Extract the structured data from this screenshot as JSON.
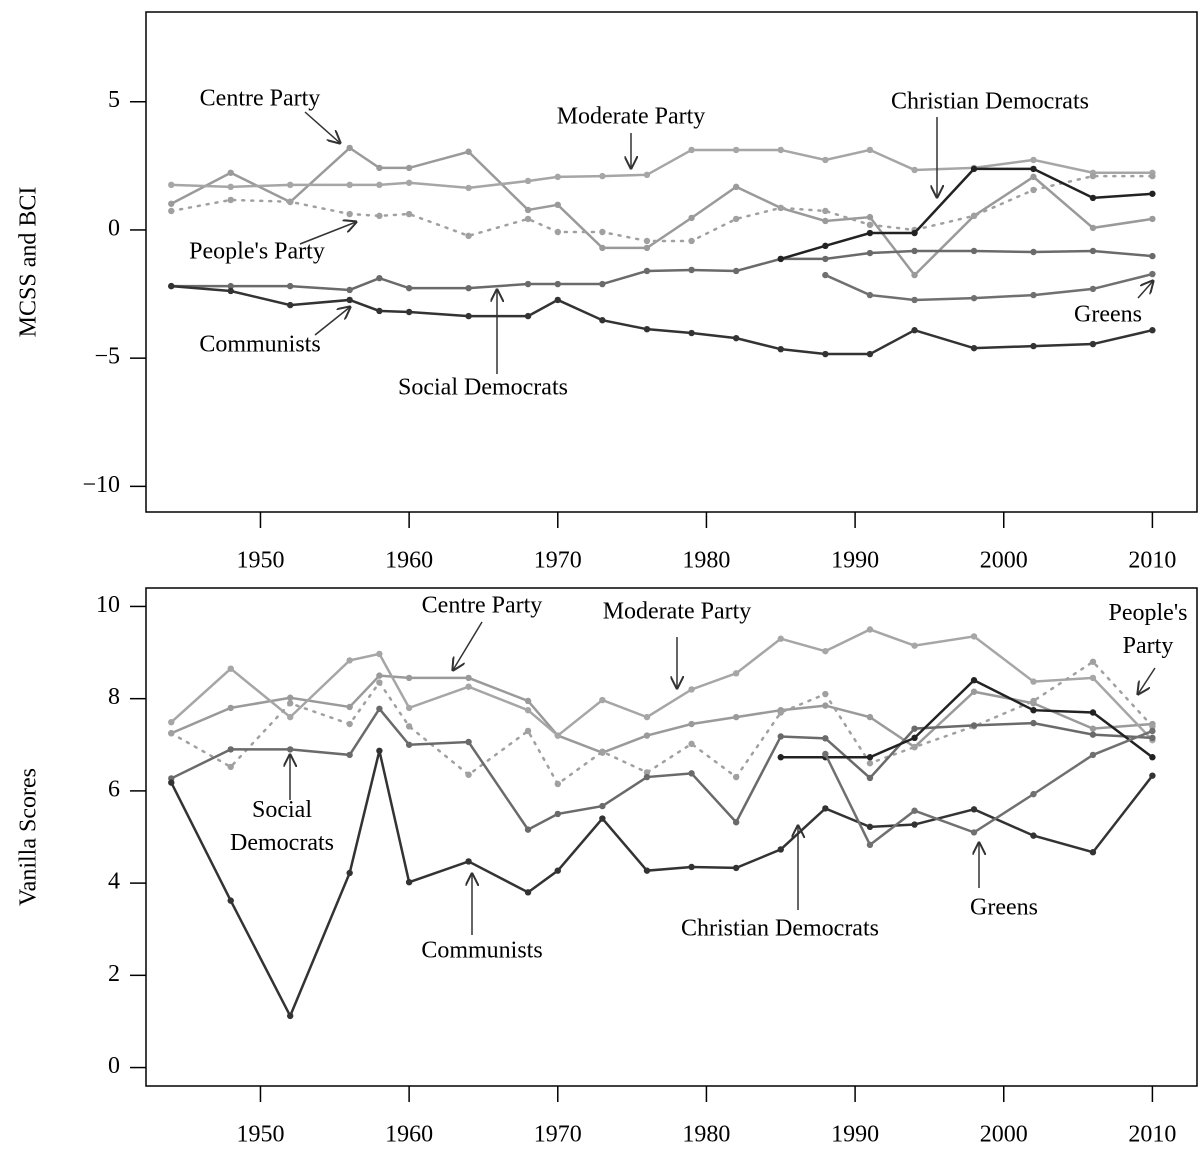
{
  "chart_data": [
    {
      "type": "line",
      "ylabel": "MCSS and BCI",
      "x": [
        1944,
        1948,
        1952,
        1956,
        1958,
        1960,
        1964,
        1968,
        1970,
        1973,
        1976,
        1979,
        1982,
        1985,
        1988,
        1991,
        1994,
        1998,
        2002,
        2006,
        2010
      ],
      "xlim": [
        1942.3,
        2013
      ],
      "xticks": [
        1950,
        1960,
        1970,
        1980,
        1990,
        2000,
        2010
      ],
      "ylim": [
        -11,
        8.5
      ],
      "yticks": [
        {
          "value": -10,
          "label": "−10"
        },
        {
          "value": -5,
          "label": "−5"
        },
        0,
        5
      ],
      "series": [
        {
          "name": "Centre Party",
          "color": "#9a9a9a",
          "style": "solid",
          "values": [
            1.02,
            2.23,
            1.09,
            3.2,
            2.42,
            2.42,
            3.05,
            0.78,
            0.98,
            -0.7,
            -0.7,
            0.47,
            1.68,
            0.86,
            0.35,
            0.5,
            -1.76,
            0.55,
            2.07,
            0.08,
            0.43
          ]
        },
        {
          "name": "Moderate Party",
          "color": "#a6a6a6",
          "style": "solid",
          "values": [
            1.76,
            1.68,
            1.76,
            1.76,
            1.76,
            1.84,
            1.64,
            1.91,
            2.07,
            2.1,
            2.15,
            3.12,
            3.12,
            3.12,
            2.73,
            3.12,
            2.34,
            2.42,
            2.73,
            2.23,
            2.23
          ]
        },
        {
          "name": "People's Party",
          "color": "#a0a0a0",
          "style": "dotted",
          "values": [
            0.74,
            1.17,
            1.1,
            0.62,
            0.55,
            0.62,
            -0.23,
            0.43,
            -0.08,
            -0.08,
            -0.43,
            -0.43,
            0.43,
            0.86,
            0.74,
            0.2,
            0,
            0.55,
            1.56,
            2.1,
            2.1
          ]
        },
        {
          "name": "Social Democrats",
          "color": "#6a6a6a",
          "style": "solid",
          "values": [
            -2.19,
            -2.19,
            -2.19,
            -2.34,
            -1.88,
            -2.27,
            -2.27,
            -2.11,
            -2.11,
            -2.11,
            -1.6,
            -1.56,
            -1.6,
            -1.13,
            -1.13,
            -0.9,
            -0.82,
            -0.82,
            -0.86,
            -0.82,
            -1.02
          ]
        },
        {
          "name": "Communists",
          "color": "#333333",
          "style": "solid",
          "values": [
            -2.19,
            -2.38,
            -2.93,
            -2.73,
            -3.16,
            -3.2,
            -3.36,
            -3.36,
            -2.73,
            -3.52,
            -3.87,
            -4.02,
            -4.22,
            -4.65,
            -4.84,
            -4.84,
            -3.91,
            -4.61,
            -4.53,
            -4.45,
            -3.91
          ]
        },
        {
          "name": "Christian Democrats",
          "color": "#222222",
          "style": "solid",
          "values": [
            null,
            null,
            null,
            null,
            null,
            null,
            null,
            null,
            null,
            null,
            null,
            null,
            null,
            -1.13,
            -0.62,
            -0.12,
            -0.12,
            2.38,
            2.38,
            1.25,
            1.41
          ]
        },
        {
          "name": "Greens",
          "color": "#707070",
          "style": "solid",
          "values": [
            null,
            null,
            null,
            null,
            null,
            null,
            null,
            null,
            null,
            null,
            null,
            null,
            null,
            null,
            -1.76,
            -2.54,
            -2.73,
            -2.66,
            -2.54,
            -2.3,
            -1.72
          ]
        }
      ]
    },
    {
      "type": "line",
      "ylabel": "Vanilla Scores",
      "x": [
        1944,
        1948,
        1952,
        1956,
        1958,
        1960,
        1964,
        1968,
        1970,
        1973,
        1976,
        1979,
        1982,
        1985,
        1988,
        1991,
        1994,
        1998,
        2002,
        2006,
        2010
      ],
      "xlim": [
        1942.3,
        2013
      ],
      "xticks": [
        1950,
        1960,
        1970,
        1980,
        1990,
        2000,
        2010
      ],
      "ylim": [
        -0.4,
        10.4
      ],
      "yticks": [
        0,
        2,
        4,
        6,
        8,
        10
      ],
      "series": [
        {
          "name": "Centre Party",
          "color": "#9a9a9a",
          "style": "solid",
          "values": [
            7.25,
            7.8,
            8.02,
            7.82,
            8.5,
            8.45,
            8.45,
            7.95,
            7.2,
            6.83,
            7.2,
            7.45,
            7.6,
            7.75,
            7.85,
            7.6,
            6.95,
            8.15,
            7.9,
            7.35,
            7.45
          ]
        },
        {
          "name": "Moderate Party",
          "color": "#a6a6a6",
          "style": "solid",
          "values": [
            7.49,
            8.65,
            7.6,
            8.83,
            8.97,
            7.8,
            8.26,
            7.75,
            7.2,
            7.97,
            7.6,
            8.2,
            8.55,
            9.3,
            9.03,
            9.5,
            9.15,
            9.35,
            8.37,
            8.45,
            7.1
          ]
        },
        {
          "name": "People's Party",
          "color": "#a0a0a0",
          "style": "dotted",
          "values": [
            7.25,
            6.52,
            7.9,
            7.45,
            8.35,
            7.4,
            6.35,
            7.3,
            6.15,
            6.85,
            6.4,
            7.02,
            6.3,
            7.7,
            8.1,
            6.6,
            6.95,
            7.4,
            7.95,
            8.8,
            7.4
          ]
        },
        {
          "name": "Social Democrats",
          "color": "#6a6a6a",
          "style": "solid",
          "values": [
            6.27,
            6.9,
            6.9,
            6.78,
            7.78,
            7.0,
            7.06,
            5.16,
            5.5,
            5.67,
            6.3,
            6.38,
            5.32,
            7.18,
            7.14,
            6.28,
            7.35,
            7.42,
            7.47,
            7.22,
            7.15
          ]
        },
        {
          "name": "Communists",
          "color": "#333333",
          "style": "solid",
          "values": [
            6.18,
            3.62,
            1.12,
            4.22,
            6.87,
            4.02,
            4.47,
            3.8,
            4.27,
            5.4,
            4.27,
            4.35,
            4.33,
            4.73,
            5.62,
            5.22,
            5.27,
            5.6,
            5.03,
            4.67,
            6.33
          ]
        },
        {
          "name": "Christian Democrats",
          "color": "#222222",
          "style": "solid",
          "values": [
            null,
            null,
            null,
            null,
            null,
            null,
            null,
            null,
            null,
            null,
            null,
            null,
            null,
            6.73,
            6.73,
            6.73,
            7.15,
            8.4,
            7.75,
            7.7,
            6.73
          ]
        },
        {
          "name": "Greens",
          "color": "#707070",
          "style": "solid",
          "values": [
            null,
            null,
            null,
            null,
            null,
            null,
            null,
            null,
            null,
            null,
            null,
            null,
            null,
            null,
            6.8,
            4.83,
            5.57,
            5.1,
            5.93,
            6.78,
            7.3
          ]
        }
      ]
    }
  ]
}
